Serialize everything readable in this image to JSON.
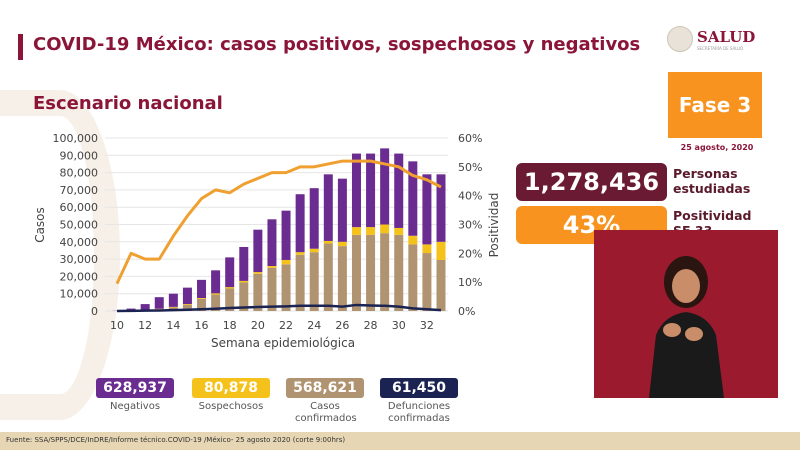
{
  "header": {
    "title": "COVID-19 México: casos positivos, sospechosos y negativos",
    "subtitle": "Escenario nacional",
    "logo_text": "SALUD",
    "logo_subtext": "SECRETARÍA DE SALUD"
  },
  "phase": {
    "label": "Fase 3",
    "date": "25 agosto, 2020"
  },
  "kpis": [
    {
      "value": "1,278,436",
      "label": "Personas estudiadas",
      "color": "#6b1a33"
    },
    {
      "value": "43%",
      "label": "Positividad SE 33",
      "color": "#f7931e"
    }
  ],
  "legend": [
    {
      "value": "628,937",
      "label": "Negativos",
      "color": "#6a2c91"
    },
    {
      "value": "80,878",
      "label": "Sospechosos",
      "color": "#f5c21b"
    },
    {
      "value": "568,621",
      "label": "Casos confirmados",
      "color": "#b09472"
    },
    {
      "value": "61,450",
      "label": "Defunciones confirmadas",
      "color": "#1b2352"
    }
  ],
  "footer": "Fuente: SSA/SPPS/DCE/InDRE/Informe técnico.COVID-19 /México- 25 agosto 2020 (corte 9:00hrs)",
  "chart_data": {
    "type": "bar",
    "stacked": true,
    "xlabel": "Semana epidemiológica",
    "ylabel": "Casos",
    "y2label": "Positividad",
    "ylim": [
      0,
      100000
    ],
    "y2lim": [
      0,
      60
    ],
    "yticks": [
      "0",
      "10,000",
      "20,000",
      "30,000",
      "40,000",
      "50,000",
      "60,000",
      "70,000",
      "80,000",
      "90,000",
      "100,000"
    ],
    "y2ticks": [
      "0%",
      "10%",
      "20%",
      "30%",
      "40%",
      "50%",
      "60%"
    ],
    "xticks": [
      "10",
      "12",
      "14",
      "16",
      "18",
      "20",
      "22",
      "24",
      "26",
      "28",
      "30",
      "32"
    ],
    "grid": true,
    "x": [
      10,
      11,
      12,
      13,
      14,
      15,
      16,
      17,
      18,
      19,
      20,
      21,
      22,
      23,
      24,
      25,
      26,
      27,
      28,
      29,
      30,
      31,
      32,
      33
    ],
    "series": [
      {
        "key": "confirmados",
        "color": "#b09472",
        "values": [
          0,
          300,
          500,
          1000,
          2000,
          3500,
          7000,
          9500,
          13000,
          16500,
          21500,
          25000,
          27000,
          32500,
          34000,
          39000,
          37500,
          44000,
          44000,
          45000,
          44000,
          38500,
          33500,
          29500
        ]
      },
      {
        "key": "sospechosos",
        "color": "#f5c21b",
        "values": [
          0,
          100,
          200,
          300,
          400,
          500,
          500,
          700,
          800,
          900,
          1000,
          1000,
          2500,
          1500,
          2000,
          1500,
          2500,
          4500,
          4500,
          5000,
          4000,
          5000,
          5000,
          10500
        ]
      },
      {
        "key": "negativos",
        "color": "#6a2c91",
        "values": [
          100,
          1000,
          3300,
          6700,
          7600,
          9500,
          10500,
          13300,
          17200,
          19600,
          24500,
          27000,
          28500,
          33500,
          35000,
          38500,
          36500,
          42500,
          42500,
          44000,
          43000,
          43000,
          40500,
          39000
        ]
      },
      {
        "key": "defunciones",
        "type": "line",
        "color": "#1b2352",
        "values": [
          0,
          100,
          200,
          300,
          500,
          700,
          1000,
          1300,
          1700,
          2000,
          2300,
          2500,
          2700,
          3000,
          3000,
          3000,
          2500,
          3500,
          3200,
          3000,
          2500,
          1500,
          1000,
          500
        ]
      },
      {
        "key": "positividad",
        "type": "line",
        "axis": "right",
        "color": "#f0a030",
        "values": [
          9.5,
          20,
          18,
          18,
          26,
          33,
          39,
          42,
          41,
          44,
          46,
          48,
          48,
          50,
          50,
          51,
          52,
          52,
          52,
          51,
          50,
          47,
          45.5,
          43
        ]
      }
    ]
  }
}
